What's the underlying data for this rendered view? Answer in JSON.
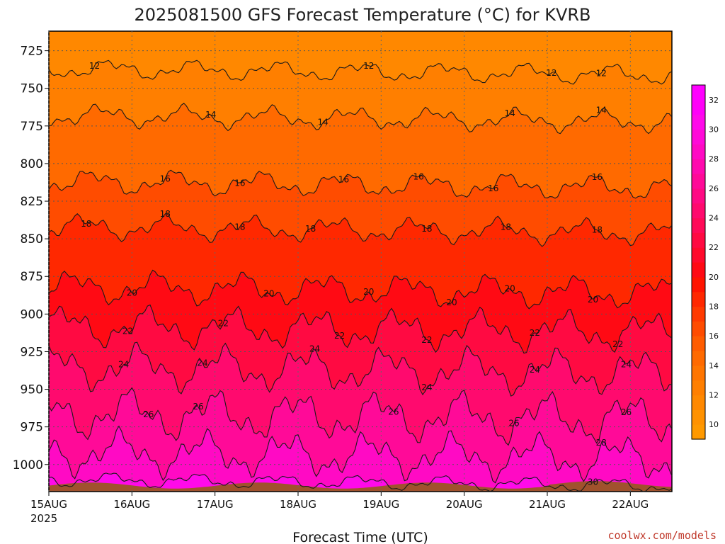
{
  "chart_data": {
    "type": "heatmap",
    "title": "2025081500 GFS Forecast Temperature (°C) for KVRB",
    "xlabel": "Forecast Time (UTC)",
    "credit": "coolwx.com/models",
    "x_ticks": [
      "15AUG",
      "16AUG",
      "17AUG",
      "18AUG",
      "19AUG",
      "20AUG",
      "21AUG",
      "22AUG"
    ],
    "x_tick_year": "2025",
    "xlim_days": [
      0,
      7.5
    ],
    "y_ticks": [
      725,
      750,
      775,
      800,
      825,
      850,
      875,
      900,
      925,
      950,
      975,
      1000
    ],
    "ylim_hpa": [
      1018,
      712
    ],
    "y_scale": "linear-inverted",
    "grid": true,
    "colorbar": {
      "ticks": [
        10,
        12,
        14,
        16,
        18,
        20,
        22,
        24,
        26,
        28,
        30,
        32
      ],
      "levels": [
        9,
        10,
        11,
        12,
        13,
        14,
        15,
        16,
        17,
        18,
        19,
        20,
        21,
        22,
        23,
        24,
        25,
        26,
        27,
        28,
        29,
        30,
        31,
        32,
        33
      ],
      "colors": [
        "#ff9900",
        "#ff9200",
        "#ff8800",
        "#ff7f00",
        "#ff7500",
        "#ff6a00",
        "#ff5c00",
        "#ff4c00",
        "#ff3a00",
        "#ff2800",
        "#ff1400",
        "#ff0a14",
        "#ff0a2c",
        "#ff0a42",
        "#ff0a58",
        "#ff0a6e",
        "#ff0a84",
        "#ff0a98",
        "#ff0aae",
        "#ff0ac4",
        "#ff0ad8",
        "#ff0aea",
        "#ff00f8",
        "#ff00ff"
      ]
    },
    "isotherms": [
      {
        "temp": 12,
        "base_hpa": 737,
        "amp": 8,
        "labels": [
          [
            0.55,
            12
          ],
          [
            3.85,
            12
          ],
          [
            6.05,
            12
          ],
          [
            6.65,
            12
          ]
        ]
      },
      {
        "temp": 14,
        "base_hpa": 768,
        "amp": 9,
        "labels": [
          [
            1.95,
            14
          ],
          [
            3.3,
            14
          ],
          [
            5.55,
            14
          ],
          [
            6.65,
            14
          ]
        ]
      },
      {
        "temp": 16,
        "base_hpa": 812,
        "amp": 10,
        "labels": [
          [
            1.4,
            16
          ],
          [
            2.3,
            16
          ],
          [
            3.55,
            16
          ],
          [
            4.45,
            16
          ],
          [
            5.35,
            16
          ],
          [
            6.6,
            16
          ]
        ]
      },
      {
        "temp": 18,
        "base_hpa": 842,
        "amp": 10,
        "labels": [
          [
            0.45,
            18
          ],
          [
            1.4,
            18
          ],
          [
            2.3,
            18
          ],
          [
            3.15,
            18
          ],
          [
            4.55,
            18
          ],
          [
            5.5,
            18
          ],
          [
            6.6,
            18
          ]
        ]
      },
      {
        "temp": 20,
        "base_hpa": 882,
        "amp": 13,
        "labels": [
          [
            1.0,
            20
          ],
          [
            2.65,
            20
          ],
          [
            3.85,
            20
          ],
          [
            4.85,
            20
          ],
          [
            5.55,
            20
          ],
          [
            6.55,
            20
          ]
        ]
      },
      {
        "temp": 22,
        "base_hpa": 908,
        "amp": 16,
        "labels": [
          [
            0.95,
            22
          ],
          [
            2.1,
            22
          ],
          [
            3.5,
            22
          ],
          [
            4.55,
            22
          ],
          [
            5.85,
            22
          ],
          [
            6.85,
            22
          ]
        ]
      },
      {
        "temp": 24,
        "base_hpa": 935,
        "amp": 18,
        "labels": [
          [
            0.9,
            24
          ],
          [
            1.85,
            24
          ],
          [
            3.2,
            24
          ],
          [
            4.55,
            24
          ],
          [
            5.85,
            24
          ],
          [
            6.95,
            24
          ]
        ]
      },
      {
        "temp": 26,
        "base_hpa": 966,
        "amp": 20,
        "labels": [
          [
            1.2,
            26
          ],
          [
            1.8,
            26
          ],
          [
            4.15,
            26
          ],
          [
            5.6,
            26
          ],
          [
            6.95,
            26
          ]
        ]
      },
      {
        "temp": 28,
        "base_hpa": 992,
        "amp": 18,
        "labels": [
          [
            6.65,
            28
          ]
        ]
      },
      {
        "temp": 30,
        "base_hpa": 1010,
        "amp": 6,
        "labels": [
          [
            6.55,
            30
          ]
        ]
      }
    ],
    "surface_hpa": 1014,
    "surface_color": "#a0522d"
  }
}
